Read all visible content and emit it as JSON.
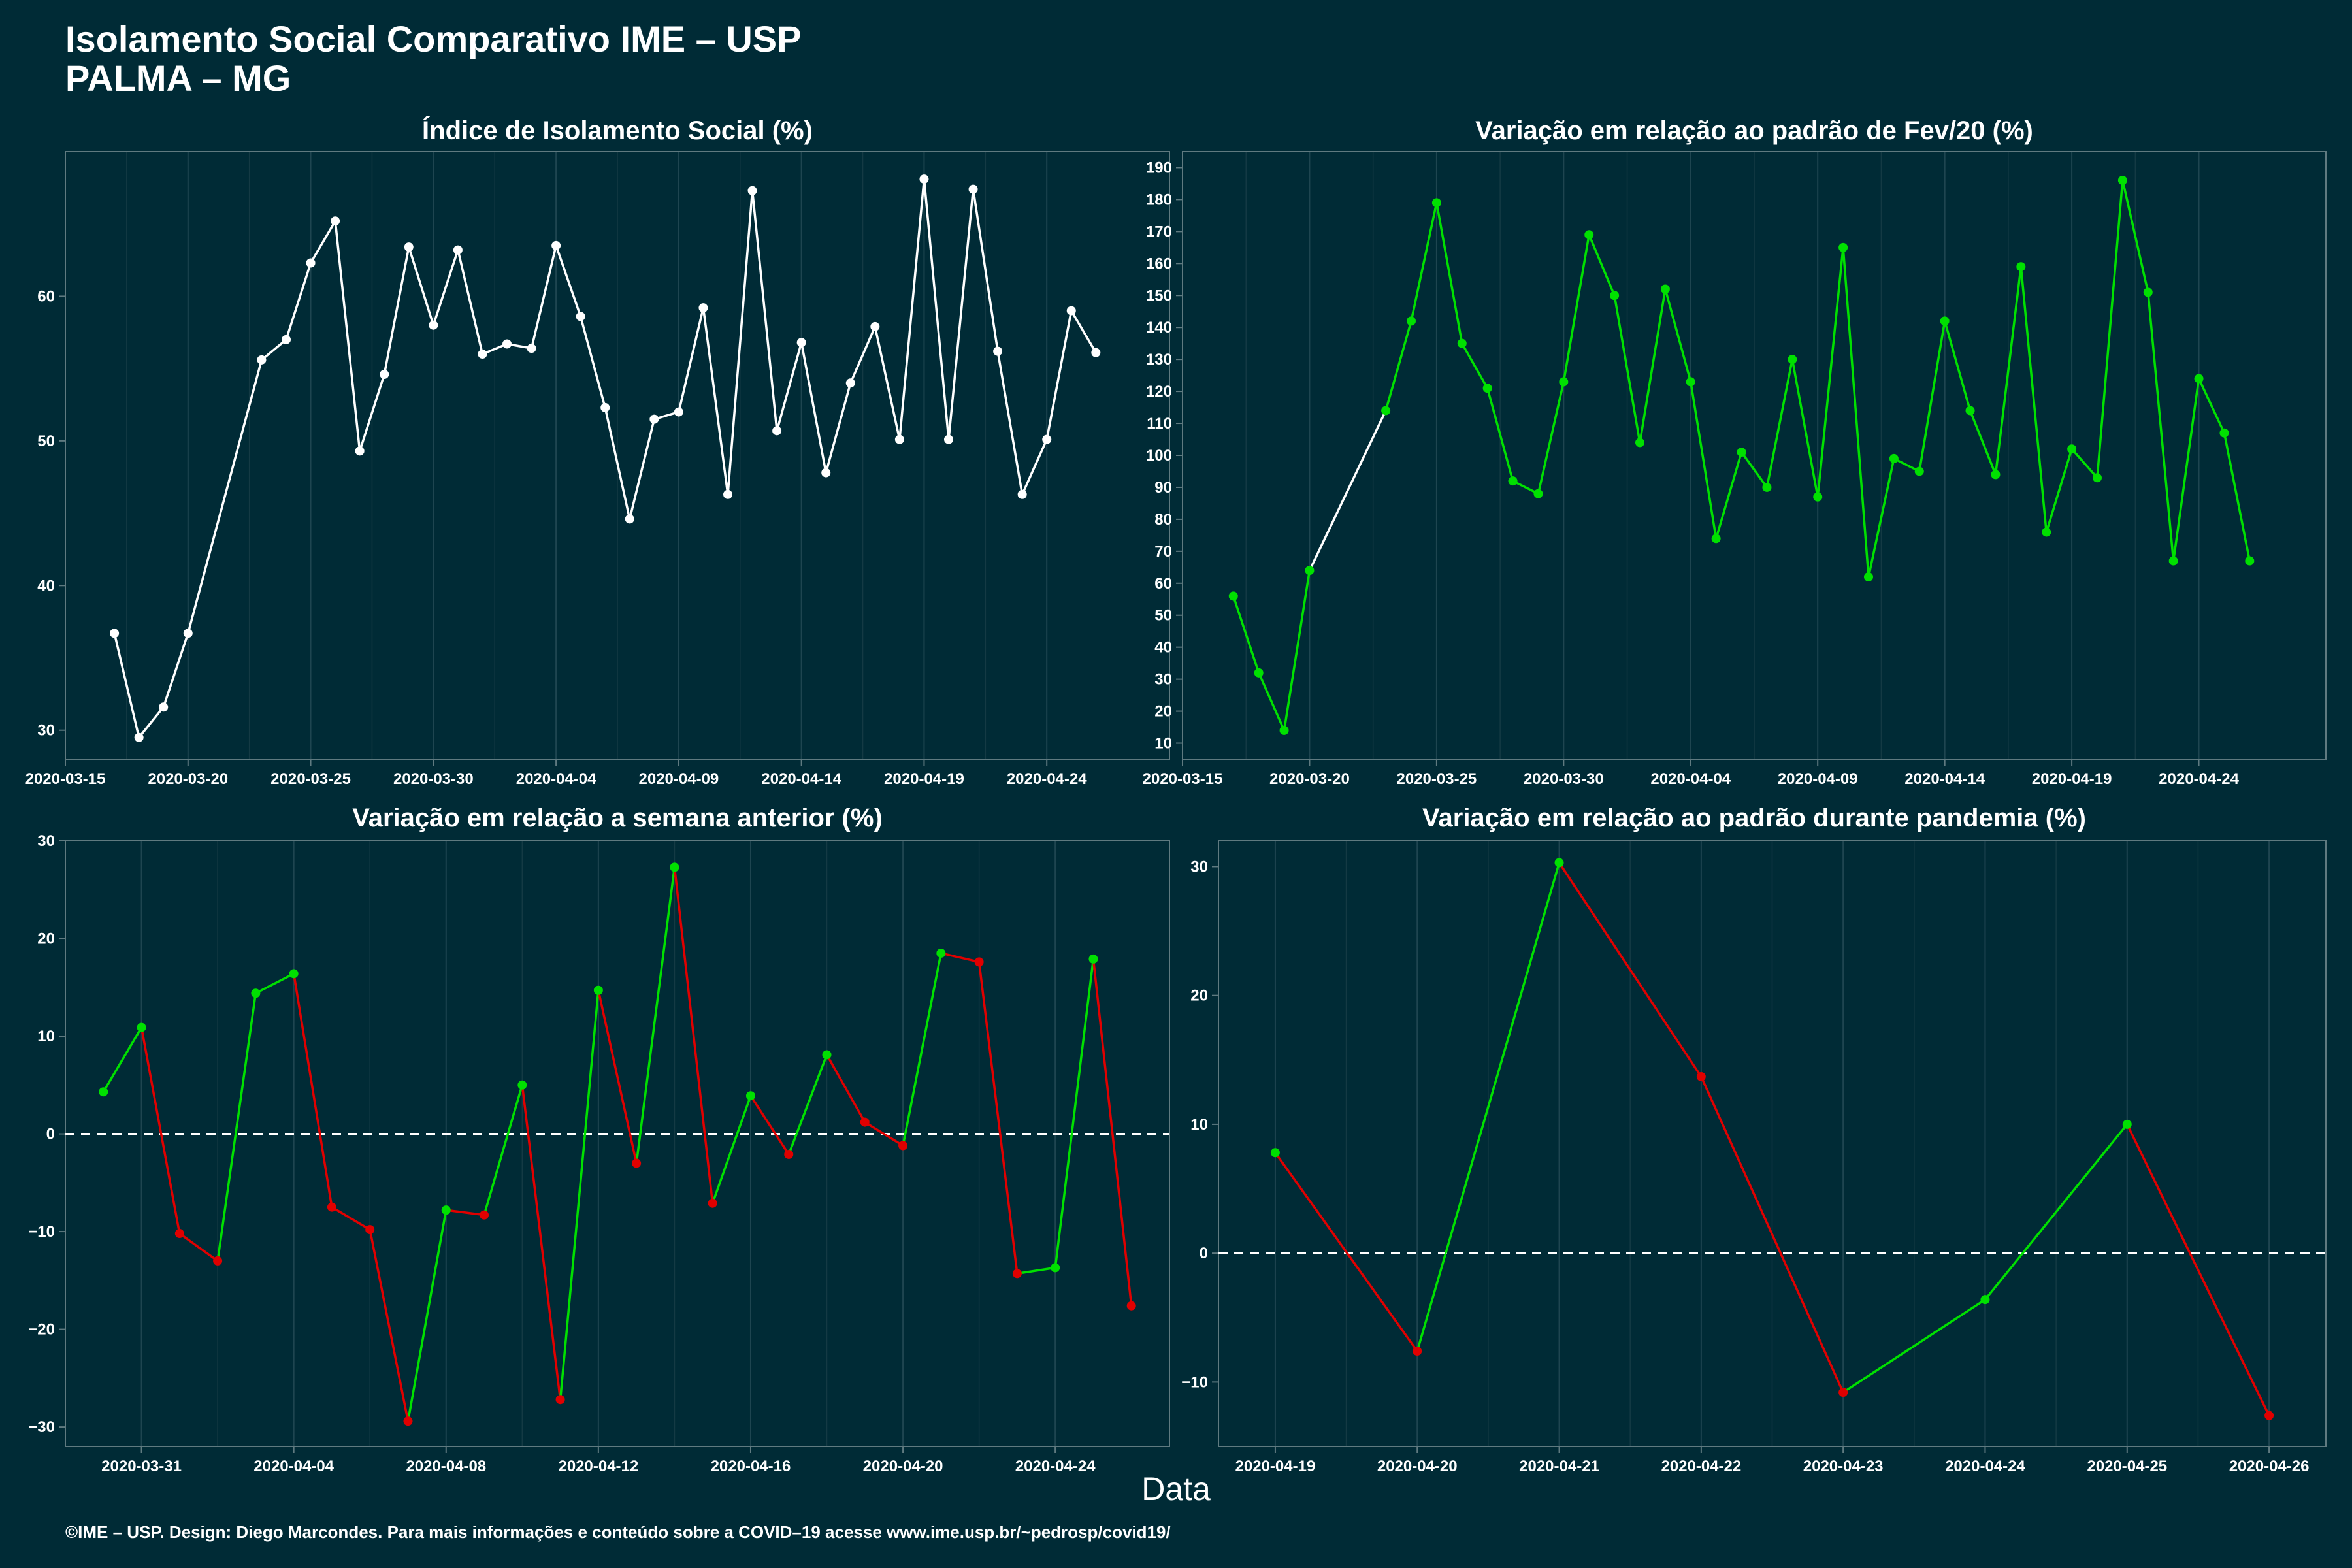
{
  "header": {
    "title_line1": "Isolamento Social Comparativo IME – USP",
    "title_line2": "PALMA – MG"
  },
  "x_axis_label": "Data",
  "footer": "©IME – USP. Design: Diego Marcondes. Para mais informações e conteúdo sobre a COVID–19 acesse www.ime.usp.br/~pedrosp/covid19/",
  "colors": {
    "background": "#002b36",
    "white_series": "#ffffff",
    "positive": "#00e000",
    "negative": "#e00000"
  },
  "chart_data": [
    {
      "type": "line",
      "title": "Índice de Isolamento Social (%)",
      "x_type": "date",
      "xlim": [
        "2020-03-15",
        "2020-04-29"
      ],
      "ylim": [
        28,
        70
      ],
      "x_ticks": [
        "2020-03-15",
        "2020-03-20",
        "2020-03-25",
        "2020-03-30",
        "2020-04-04",
        "2020-04-09",
        "2020-04-14",
        "2020-04-19",
        "2020-04-24"
      ],
      "y_ticks": [
        30,
        40,
        50,
        60
      ],
      "grid": "vertical",
      "color": "#ffffff",
      "x": [
        "2020-03-17",
        "2020-03-18",
        "2020-03-19",
        "2020-03-20",
        "2020-03-23",
        "2020-03-24",
        "2020-03-25",
        "2020-03-26",
        "2020-03-27",
        "2020-03-28",
        "2020-03-29",
        "2020-03-30",
        "2020-03-31",
        "2020-04-01",
        "2020-04-02",
        "2020-04-03",
        "2020-04-04",
        "2020-04-05",
        "2020-04-06",
        "2020-04-07",
        "2020-04-08",
        "2020-04-09",
        "2020-04-10",
        "2020-04-11",
        "2020-04-12",
        "2020-04-13",
        "2020-04-14",
        "2020-04-15",
        "2020-04-16",
        "2020-04-17",
        "2020-04-18",
        "2020-04-19",
        "2020-04-20",
        "2020-04-21",
        "2020-04-22",
        "2020-04-23",
        "2020-04-24",
        "2020-04-25",
        "2020-04-26"
      ],
      "values": [
        36.7,
        29.5,
        31.6,
        36.7,
        55.6,
        57.0,
        62.3,
        65.2,
        49.3,
        54.6,
        63.4,
        58.0,
        63.2,
        56.0,
        56.7,
        56.4,
        63.5,
        58.6,
        52.3,
        44.6,
        51.5,
        52.0,
        59.2,
        46.3,
        67.3,
        50.7,
        56.8,
        47.8,
        54.0,
        57.9,
        50.1,
        68.1,
        50.1,
        67.4,
        56.2,
        46.3,
        50.1,
        59.0,
        56.1
      ]
    },
    {
      "type": "line",
      "title": "Variação em relação ao padrão de Fev/20 (%)",
      "x_type": "date",
      "xlim": [
        "2020-03-15",
        "2020-04-29"
      ],
      "ylim": [
        5,
        195
      ],
      "x_ticks": [
        "2020-03-15",
        "2020-03-20",
        "2020-03-25",
        "2020-03-30",
        "2020-04-04",
        "2020-04-09",
        "2020-04-14",
        "2020-04-19",
        "2020-04-24"
      ],
      "y_ticks": [
        10,
        20,
        30,
        40,
        50,
        60,
        70,
        80,
        90,
        100,
        110,
        120,
        130,
        140,
        150,
        160,
        170,
        180,
        190
      ],
      "grid": "vertical",
      "color_rule": "segment green; gap segment white",
      "x": [
        "2020-03-17",
        "2020-03-18",
        "2020-03-19",
        "2020-03-20",
        "2020-03-23",
        "2020-03-24",
        "2020-03-25",
        "2020-03-26",
        "2020-03-27",
        "2020-03-28",
        "2020-03-29",
        "2020-03-30",
        "2020-03-31",
        "2020-04-01",
        "2020-04-02",
        "2020-04-03",
        "2020-04-04",
        "2020-04-05",
        "2020-04-06",
        "2020-04-07",
        "2020-04-08",
        "2020-04-09",
        "2020-04-10",
        "2020-04-11",
        "2020-04-12",
        "2020-04-13",
        "2020-04-14",
        "2020-04-15",
        "2020-04-16",
        "2020-04-17",
        "2020-04-18",
        "2020-04-19",
        "2020-04-20",
        "2020-04-21",
        "2020-04-22",
        "2020-04-23",
        "2020-04-24",
        "2020-04-25",
        "2020-04-26"
      ],
      "values": [
        56,
        32,
        14,
        64,
        114,
        142,
        179,
        135,
        121,
        92,
        88,
        123,
        169,
        150,
        104,
        152,
        123,
        74,
        101,
        90,
        130,
        87,
        165,
        62,
        99,
        95,
        142,
        114,
        94,
        159,
        76,
        102,
        93,
        186,
        151,
        67,
        124,
        107,
        67
      ]
    },
    {
      "type": "line",
      "title": "Variação em relação a semana anterior (%)",
      "x_type": "date",
      "xlim": [
        "2020-03-29",
        "2020-04-27"
      ],
      "ylim": [
        -32,
        30
      ],
      "x_ticks": [
        "2020-03-31",
        "2020-04-04",
        "2020-04-08",
        "2020-04-12",
        "2020-04-16",
        "2020-04-20",
        "2020-04-24"
      ],
      "y_ticks": [
        -30,
        -20,
        -10,
        0,
        10,
        20,
        30
      ],
      "grid": "vertical",
      "reference_line": 0,
      "color_rule": "green when rising, red when falling",
      "x": [
        "2020-03-30",
        "2020-03-31",
        "2020-04-01",
        "2020-04-02",
        "2020-04-03",
        "2020-04-04",
        "2020-04-05",
        "2020-04-06",
        "2020-04-07",
        "2020-04-08",
        "2020-04-09",
        "2020-04-10",
        "2020-04-11",
        "2020-04-12",
        "2020-04-13",
        "2020-04-14",
        "2020-04-15",
        "2020-04-16",
        "2020-04-17",
        "2020-04-18",
        "2020-04-19",
        "2020-04-20",
        "2020-04-21",
        "2020-04-22",
        "2020-04-23",
        "2020-04-24",
        "2020-04-25",
        "2020-04-26"
      ],
      "values": [
        4.3,
        10.9,
        -10.2,
        -13.0,
        14.4,
        16.4,
        -7.5,
        -9.8,
        -29.4,
        -7.8,
        -8.3,
        5.0,
        -27.2,
        14.7,
        -3.0,
        27.3,
        -7.1,
        3.9,
        -2.1,
        8.1,
        1.2,
        -1.2,
        18.5,
        17.6,
        -14.3,
        -13.7,
        17.9,
        -17.6
      ]
    },
    {
      "type": "line",
      "title": "Variação em relação ao padrão durante pandemia (%)",
      "x_type": "category",
      "categories": [
        "2020-04-19",
        "2020-04-20",
        "2020-04-21",
        "2020-04-22",
        "2020-04-23",
        "2020-04-24",
        "2020-04-25",
        "2020-04-26"
      ],
      "ylim": [
        -15,
        32
      ],
      "y_ticks": [
        -10,
        0,
        10,
        20,
        30
      ],
      "grid": "vertical",
      "reference_line": 0,
      "color_rule": "green when rising, red when falling",
      "values": [
        7.8,
        -7.6,
        30.3,
        13.7,
        -10.8,
        -3.6,
        10.0,
        -12.6
      ]
    }
  ]
}
